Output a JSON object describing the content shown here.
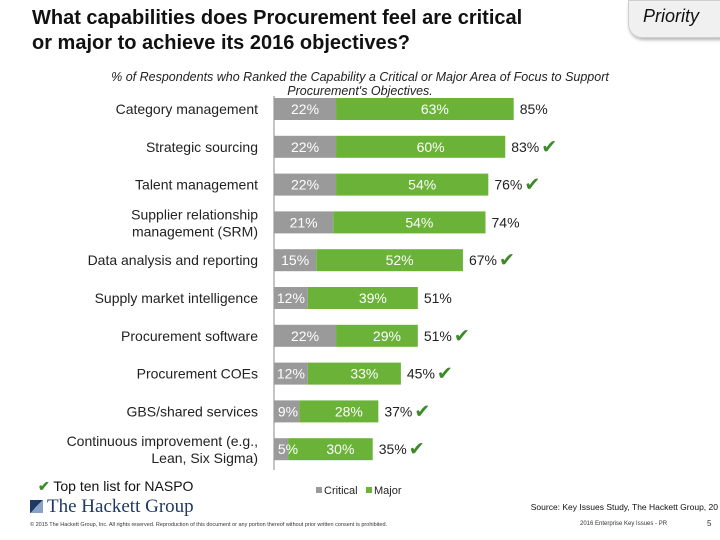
{
  "header": {
    "title_line1": "What capabilities does Procurement feel are critical",
    "title_line2": "or major to achieve its 2016 objectives?",
    "priority_tag": "Priority"
  },
  "subtitle_line1": "% of Respondents who Ranked the Capability a Critical or Major Area of Focus to Support",
  "subtitle_line2": "Procurement's Objectives.",
  "chart_data": {
    "type": "bar",
    "orientation": "horizontal",
    "stacked": true,
    "categories": [
      "Category management",
      "Strategic sourcing",
      "Talent management",
      "Supplier relationship management (SRM)",
      "Data analysis and reporting",
      "Supply market intelligence",
      "Procurement software",
      "Procurement COEs",
      "GBS/shared services",
      "Continuous improvement (e.g., Lean, Six Sigma)"
    ],
    "category_lines": [
      [
        "Category management"
      ],
      [
        "Strategic sourcing"
      ],
      [
        "Talent management"
      ],
      [
        "Supplier relationship",
        "management (SRM)"
      ],
      [
        "Data analysis and reporting"
      ],
      [
        "Supply market intelligence"
      ],
      [
        "Procurement software"
      ],
      [
        "Procurement COEs"
      ],
      [
        "GBS/shared services"
      ],
      [
        "Continuous improvement (e.g.,",
        "Lean, Six Sigma)"
      ]
    ],
    "series": [
      {
        "name": "Critical",
        "color": "#9a9a9a",
        "values": [
          22,
          22,
          22,
          21,
          15,
          12,
          22,
          12,
          9,
          5
        ]
      },
      {
        "name": "Major",
        "color": "#6ab338",
        "values": [
          63,
          60,
          54,
          54,
          52,
          39,
          29,
          33,
          28,
          30
        ]
      }
    ],
    "totals": [
      85,
      83,
      76,
      74,
      67,
      51,
      51,
      45,
      37,
      35
    ],
    "top_ten_nasp": [
      false,
      true,
      true,
      false,
      true,
      false,
      true,
      true,
      true,
      true
    ],
    "legend_position": "bottom",
    "xlim": [
      0,
      100
    ]
  },
  "legend": [
    "Critical",
    "Major"
  ],
  "footnote": "Top ten list for NASPO",
  "check_glyph": "✔",
  "source": "Source: Key Issues Study, The Hackett Group, 20",
  "logo_text": "The Hackett Group",
  "copyright": "© 2015 The Hackett Group, Inc. All rights reserved. Reproduction of this document or any portion thereof without prior written consent is prohibited.",
  "bottom_label": "2016 Enterprise Key Issues - PR",
  "page_number": "5"
}
